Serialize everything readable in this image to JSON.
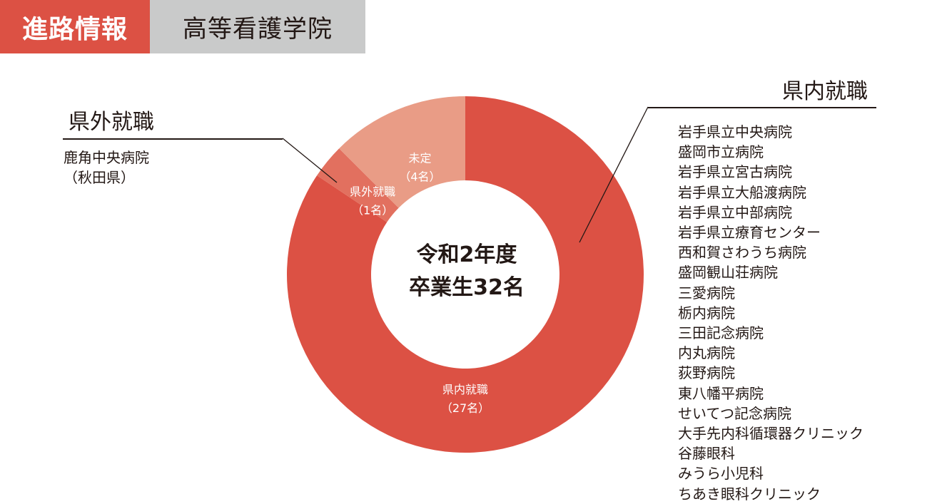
{
  "header": {
    "section_label": "進路情報",
    "school_name": "高等看護学院"
  },
  "colors": {
    "accent": "#dc5144",
    "slice_main": "#dc5144",
    "slice_outside": "#e2705f",
    "slice_undecided": "#e99c86",
    "header_gray": "#c9caca"
  },
  "outside": {
    "heading": "県外就職",
    "items": [
      "鹿角中央病院",
      "（秋田県）"
    ]
  },
  "inside": {
    "heading": "県内就職",
    "items": [
      "岩手県立中央病院",
      "盛岡市立病院",
      "岩手県立宮古病院",
      "岩手県立大船渡病院",
      "岩手県立中部病院",
      "岩手県立療育センター",
      "西和賀さわうち病院",
      "盛岡観山荘病院",
      "三愛病院",
      "栃内病院",
      "三田記念病院",
      "内丸病院",
      "荻野病院",
      "東八幡平病院",
      "せいてつ記念病院",
      "大手先内科循環器クリニック",
      "谷藤眼科",
      "みうら小児科",
      "ちあき眼科クリニック"
    ]
  },
  "chart_data": {
    "type": "pie",
    "donut": true,
    "center_text": [
      "令和2年度",
      "卒業生32名"
    ],
    "total": 32,
    "slices": [
      {
        "label": "県内就職",
        "value_label": "（27名）",
        "value": 27,
        "color": "#dc5144"
      },
      {
        "label": "県外就職",
        "value_label": "（1名）",
        "value": 1,
        "color": "#e2705f"
      },
      {
        "label": "未定",
        "value_label": "（4名）",
        "value": 4,
        "color": "#e99c86"
      }
    ]
  }
}
